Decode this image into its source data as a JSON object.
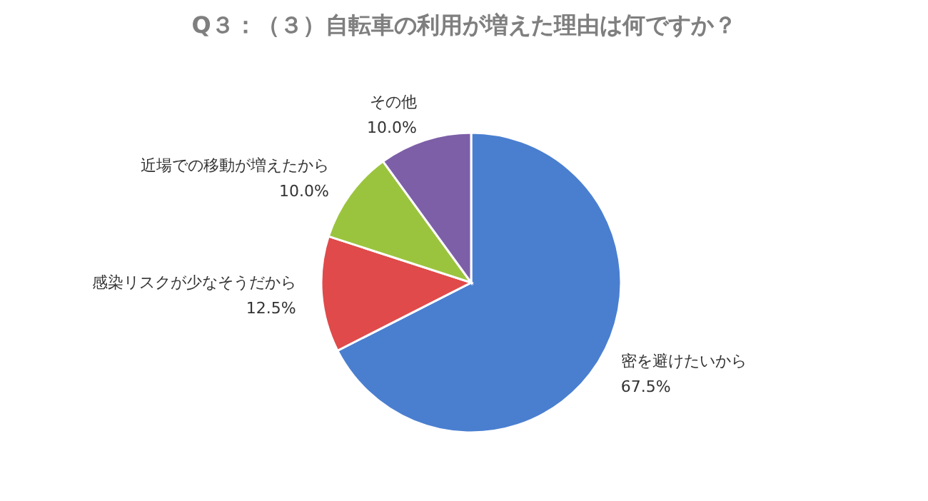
{
  "chart_data": {
    "type": "pie",
    "title": "Q３：（３）自転車の利用が増えた理由は何ですか？",
    "categories": [
      "密を避けたいから",
      "感染リスクが少なそうだから",
      "近場での移動が増えたから",
      "その他"
    ],
    "values": [
      67.5,
      12.5,
      10.0,
      10.0
    ],
    "value_labels": [
      "67.5%",
      "12.5%",
      "10.0%",
      "10.0%"
    ],
    "colors": [
      "#4a7fd0",
      "#e04a4a",
      "#9bc43e",
      "#7d5fa8"
    ]
  }
}
